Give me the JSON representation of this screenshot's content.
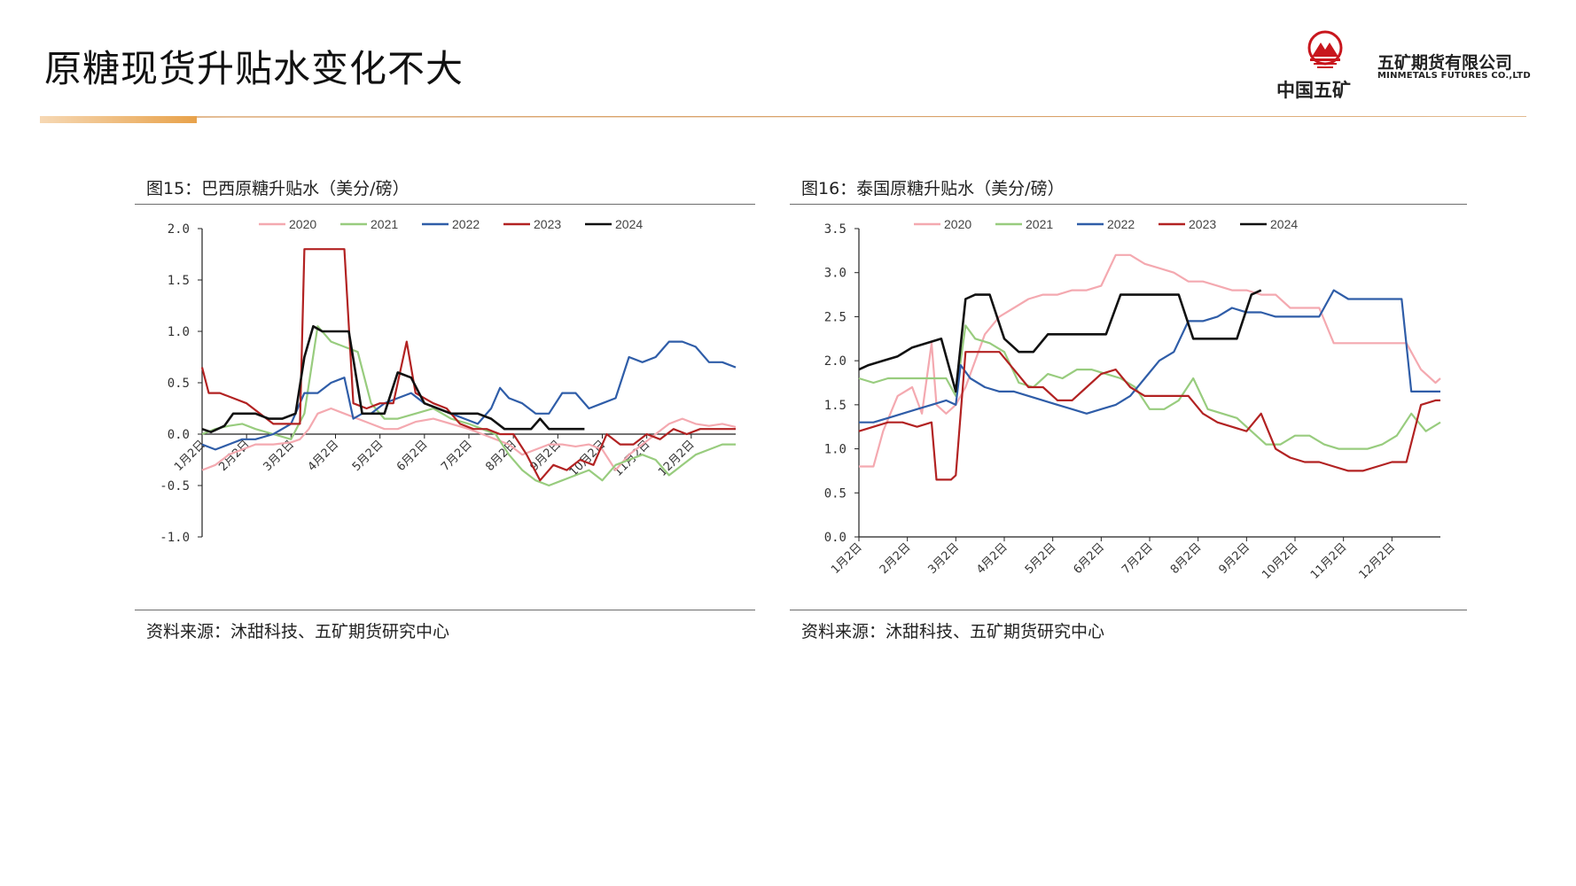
{
  "page": {
    "title": "原糖现货升贴水变化不大"
  },
  "logo": {
    "cn_name": "中国五矿",
    "company": "五矿期货有限公司",
    "company_en": "MINMETALS FUTURES CO.,LTD"
  },
  "colors": {
    "2020": "#f4a9b0",
    "2021": "#98cc7e",
    "2022": "#2f5da8",
    "2023": "#b22222",
    "2024": "#111111",
    "header_rule_accent": "#e8a24a",
    "header_rule_line": "#d9a26a"
  },
  "chart_data": [
    {
      "type": "line",
      "title": "图15：巴西原糖升贴水（美分/磅）",
      "source": "资料来源：沐甜科技、五矿期货研究中心",
      "ylim": [
        -1.0,
        2.0
      ],
      "yticks": [
        "2.0",
        "1.5",
        "1.0",
        "0.5",
        "0.0",
        "-0.5",
        "-1.0"
      ],
      "ytick_values": [
        2.0,
        1.5,
        1.0,
        0.5,
        0.0,
        -0.5,
        -1.0
      ],
      "x_domain": [
        0,
        12
      ],
      "xtick_positions": [
        0,
        1,
        2,
        3,
        4,
        5,
        6,
        7,
        8,
        9,
        10,
        11
      ],
      "xticks": [
        "1月2日",
        "2月2日",
        "3月2日",
        "4月2日",
        "5月2日",
        "6月2日",
        "7月2日",
        "8月2日",
        "9月2日",
        "10月2日",
        "11月2日",
        "12月2日"
      ],
      "xtick_rotation": -45,
      "legend_position": "top-center",
      "series": [
        {
          "name": "2020",
          "x": [
            0,
            0.3,
            0.6,
            0.9,
            1.2,
            1.6,
            2.0,
            2.2,
            2.4,
            2.6,
            2.9,
            3.2,
            3.5,
            3.8,
            4.1,
            4.4,
            4.8,
            5.2,
            5.6,
            6.0,
            6.3,
            6.6,
            6.9,
            7.2,
            7.5,
            7.8,
            8.1,
            8.4,
            8.7,
            9.0,
            9.3,
            9.6,
            9.9,
            10.2,
            10.5,
            10.8,
            11.1,
            11.4,
            11.7,
            12.0
          ],
          "values": [
            -0.35,
            -0.3,
            -0.2,
            -0.15,
            -0.1,
            -0.1,
            -0.08,
            -0.05,
            0.05,
            0.2,
            0.25,
            0.2,
            0.15,
            0.1,
            0.05,
            0.05,
            0.12,
            0.15,
            0.1,
            0.05,
            0.0,
            -0.05,
            -0.1,
            -0.2,
            -0.15,
            -0.1,
            -0.1,
            -0.12,
            -0.1,
            -0.15,
            -0.35,
            -0.2,
            -0.1,
            0.0,
            0.1,
            0.15,
            0.1,
            0.08,
            0.1,
            0.07
          ]
        },
        {
          "name": "2021",
          "x": [
            0,
            0.3,
            0.6,
            0.9,
            1.2,
            1.6,
            2.0,
            2.3,
            2.6,
            2.9,
            3.2,
            3.5,
            3.8,
            4.1,
            4.4,
            4.8,
            5.2,
            5.6,
            6.0,
            6.3,
            6.6,
            6.9,
            7.2,
            7.5,
            7.8,
            8.1,
            8.4,
            8.7,
            9.0,
            9.3,
            9.6,
            9.9,
            10.2,
            10.5,
            10.8,
            11.1,
            11.4,
            11.7,
            12.0
          ],
          "values": [
            0.0,
            0.05,
            0.08,
            0.1,
            0.05,
            0.0,
            -0.05,
            0.2,
            1.05,
            0.9,
            0.85,
            0.8,
            0.3,
            0.15,
            0.15,
            0.2,
            0.25,
            0.15,
            0.1,
            0.05,
            0.0,
            -0.2,
            -0.35,
            -0.45,
            -0.5,
            -0.45,
            -0.4,
            -0.35,
            -0.45,
            -0.3,
            -0.25,
            -0.2,
            -0.25,
            -0.4,
            -0.3,
            -0.2,
            -0.15,
            -0.1,
            -0.1
          ]
        },
        {
          "name": "2022",
          "x": [
            0,
            0.3,
            0.6,
            0.9,
            1.2,
            1.6,
            2.0,
            2.3,
            2.6,
            2.9,
            3.2,
            3.4,
            3.6,
            3.8,
            4.1,
            4.4,
            4.7,
            5.0,
            5.3,
            5.6,
            5.9,
            6.2,
            6.5,
            6.7,
            6.9,
            7.2,
            7.5,
            7.8,
            8.1,
            8.4,
            8.7,
            9.0,
            9.3,
            9.6,
            9.9,
            10.2,
            10.5,
            10.8,
            11.1,
            11.4,
            11.7,
            12.0
          ],
          "values": [
            -0.1,
            -0.15,
            -0.1,
            -0.05,
            -0.05,
            0.0,
            0.1,
            0.4,
            0.4,
            0.5,
            0.55,
            0.15,
            0.2,
            0.2,
            0.3,
            0.35,
            0.4,
            0.3,
            0.25,
            0.2,
            0.15,
            0.1,
            0.25,
            0.45,
            0.35,
            0.3,
            0.2,
            0.2,
            0.4,
            0.4,
            0.25,
            0.3,
            0.35,
            0.75,
            0.7,
            0.75,
            0.9,
            0.9,
            0.85,
            0.7,
            0.7,
            0.65
          ]
        },
        {
          "name": "2023",
          "x": [
            0,
            0.15,
            0.4,
            0.7,
            1.0,
            1.3,
            1.6,
            1.9,
            2.2,
            2.3,
            2.6,
            2.9,
            3.2,
            3.4,
            3.7,
            4.0,
            4.3,
            4.6,
            4.8,
            5.0,
            5.2,
            5.5,
            5.8,
            6.1,
            6.4,
            6.7,
            7.0,
            7.3,
            7.6,
            7.9,
            8.2,
            8.5,
            8.8,
            9.1,
            9.4,
            9.7,
            10.0,
            10.3,
            10.6,
            10.9,
            11.2,
            11.5,
            11.8,
            12.0
          ],
          "values": [
            0.65,
            0.4,
            0.4,
            0.35,
            0.3,
            0.2,
            0.1,
            0.1,
            0.1,
            1.8,
            1.8,
            1.8,
            1.8,
            0.3,
            0.25,
            0.3,
            0.3,
            0.9,
            0.4,
            0.35,
            0.3,
            0.25,
            0.1,
            0.05,
            0.05,
            0.0,
            0.0,
            -0.2,
            -0.45,
            -0.3,
            -0.35,
            -0.25,
            -0.3,
            0.0,
            -0.1,
            -0.1,
            0.0,
            -0.05,
            0.05,
            0.0,
            0.05,
            0.05,
            0.05,
            0.05
          ]
        },
        {
          "name": "2024",
          "x": [
            0,
            0.2,
            0.5,
            0.7,
            0.9,
            1.2,
            1.5,
            1.8,
            2.1,
            2.3,
            2.5,
            2.7,
            3.0,
            3.3,
            3.6,
            3.8,
            4.1,
            4.4,
            4.7,
            5.0,
            5.3,
            5.6,
            5.9,
            6.2,
            6.5,
            6.8,
            7.1,
            7.4,
            7.6,
            7.8,
            8.1,
            8.4,
            8.6
          ],
          "values": [
            0.05,
            0.02,
            0.08,
            0.2,
            0.2,
            0.2,
            0.15,
            0.15,
            0.2,
            0.75,
            1.05,
            1.0,
            1.0,
            1.0,
            0.2,
            0.2,
            0.2,
            0.6,
            0.55,
            0.3,
            0.25,
            0.2,
            0.2,
            0.2,
            0.15,
            0.05,
            0.05,
            0.05,
            0.15,
            0.05,
            0.05,
            0.05,
            0.05
          ]
        }
      ]
    },
    {
      "type": "line",
      "title": "图16：泰国原糖升贴水（美分/磅）",
      "source": "资料来源：沐甜科技、五矿期货研究中心",
      "ylim": [
        0.0,
        3.5
      ],
      "yticks": [
        "3.5",
        "3.0",
        "2.5",
        "2.0",
        "1.5",
        "1.0",
        "0.5",
        "0.0"
      ],
      "ytick_values": [
        3.5,
        3.0,
        2.5,
        2.0,
        1.5,
        1.0,
        0.5,
        0.0
      ],
      "x_domain": [
        0,
        12
      ],
      "xtick_positions": [
        0,
        1,
        2,
        3,
        4,
        5,
        6,
        7,
        8,
        9,
        10,
        11
      ],
      "xticks": [
        "1月2日",
        "2月2日",
        "3月2日",
        "4月2日",
        "5月2日",
        "6月2日",
        "7月2日",
        "8月2日",
        "9月2日",
        "10月2日",
        "11月2日",
        "12月2日"
      ],
      "xtick_rotation": -45,
      "legend_position": "top-center",
      "series": [
        {
          "name": "2020",
          "x": [
            0,
            0.3,
            0.5,
            0.8,
            1.1,
            1.3,
            1.5,
            1.6,
            1.8,
            2.0,
            2.2,
            2.4,
            2.6,
            2.9,
            3.2,
            3.5,
            3.8,
            4.1,
            4.4,
            4.7,
            5.0,
            5.3,
            5.6,
            5.9,
            6.2,
            6.5,
            6.8,
            7.1,
            7.4,
            7.7,
            8.0,
            8.3,
            8.6,
            8.9,
            9.2,
            9.5,
            9.8,
            10.1,
            10.4,
            10.7,
            11.0,
            11.3,
            11.6,
            11.9,
            12.0
          ],
          "values": [
            0.8,
            0.8,
            1.2,
            1.6,
            1.7,
            1.4,
            2.2,
            1.5,
            1.4,
            1.5,
            1.7,
            2.0,
            2.3,
            2.5,
            2.6,
            2.7,
            2.75,
            2.75,
            2.8,
            2.8,
            2.85,
            3.2,
            3.2,
            3.1,
            3.05,
            3.0,
            2.9,
            2.9,
            2.85,
            2.8,
            2.8,
            2.75,
            2.75,
            2.6,
            2.6,
            2.6,
            2.2,
            2.2,
            2.2,
            2.2,
            2.2,
            2.2,
            1.9,
            1.75,
            1.8
          ]
        },
        {
          "name": "2021",
          "x": [
            0,
            0.3,
            0.6,
            0.9,
            1.2,
            1.5,
            1.8,
            2.0,
            2.2,
            2.4,
            2.7,
            3.0,
            3.3,
            3.6,
            3.9,
            4.2,
            4.5,
            4.8,
            5.1,
            5.4,
            5.7,
            6.0,
            6.3,
            6.6,
            6.9,
            7.2,
            7.5,
            7.8,
            8.1,
            8.4,
            8.7,
            9.0,
            9.3,
            9.6,
            9.9,
            10.2,
            10.5,
            10.8,
            11.1,
            11.4,
            11.7,
            12.0
          ],
          "values": [
            1.8,
            1.75,
            1.8,
            1.8,
            1.8,
            1.8,
            1.8,
            1.6,
            2.4,
            2.25,
            2.2,
            2.1,
            1.75,
            1.7,
            1.85,
            1.8,
            1.9,
            1.9,
            1.85,
            1.8,
            1.7,
            1.45,
            1.45,
            1.55,
            1.8,
            1.45,
            1.4,
            1.35,
            1.2,
            1.05,
            1.05,
            1.15,
            1.15,
            1.05,
            1.0,
            1.0,
            1.0,
            1.05,
            1.15,
            1.4,
            1.2,
            1.3
          ]
        },
        {
          "name": "2022",
          "x": [
            0,
            0.3,
            0.6,
            0.9,
            1.2,
            1.5,
            1.8,
            2.0,
            2.1,
            2.3,
            2.6,
            2.9,
            3.2,
            3.5,
            3.8,
            4.1,
            4.4,
            4.7,
            5.0,
            5.3,
            5.6,
            5.9,
            6.2,
            6.5,
            6.8,
            7.1,
            7.4,
            7.7,
            8.0,
            8.3,
            8.6,
            8.9,
            9.2,
            9.5,
            9.8,
            10.1,
            10.4,
            10.7,
            11.0,
            11.2,
            11.4,
            11.6,
            11.8,
            12.0
          ],
          "values": [
            1.3,
            1.3,
            1.35,
            1.4,
            1.45,
            1.5,
            1.55,
            1.5,
            1.95,
            1.8,
            1.7,
            1.65,
            1.65,
            1.6,
            1.55,
            1.5,
            1.45,
            1.4,
            1.45,
            1.5,
            1.6,
            1.8,
            2.0,
            2.1,
            2.45,
            2.45,
            2.5,
            2.6,
            2.55,
            2.55,
            2.5,
            2.5,
            2.5,
            2.5,
            2.8,
            2.7,
            2.7,
            2.7,
            2.7,
            2.7,
            1.65,
            1.65,
            1.65,
            1.65
          ]
        },
        {
          "name": "2023",
          "x": [
            0,
            0.3,
            0.6,
            0.9,
            1.2,
            1.5,
            1.6,
            1.9,
            2.0,
            2.2,
            2.4,
            2.6,
            2.9,
            3.2,
            3.5,
            3.8,
            4.1,
            4.4,
            4.7,
            5.0,
            5.3,
            5.6,
            5.9,
            6.2,
            6.5,
            6.8,
            7.1,
            7.4,
            7.7,
            8.0,
            8.3,
            8.6,
            8.9,
            9.2,
            9.5,
            9.8,
            10.1,
            10.4,
            10.7,
            11.0,
            11.3,
            11.6,
            11.9,
            12.0
          ],
          "values": [
            1.2,
            1.25,
            1.3,
            1.3,
            1.25,
            1.3,
            0.65,
            0.65,
            0.7,
            2.1,
            2.1,
            2.1,
            2.1,
            1.9,
            1.7,
            1.7,
            1.55,
            1.55,
            1.7,
            1.85,
            1.9,
            1.7,
            1.6,
            1.6,
            1.6,
            1.6,
            1.4,
            1.3,
            1.25,
            1.2,
            1.4,
            1.0,
            0.9,
            0.85,
            0.85,
            0.8,
            0.75,
            0.75,
            0.8,
            0.85,
            0.85,
            1.5,
            1.55,
            1.55
          ]
        },
        {
          "name": "2024",
          "x": [
            0,
            0.2,
            0.5,
            0.8,
            1.1,
            1.4,
            1.7,
            2.0,
            2.2,
            2.4,
            2.7,
            3.0,
            3.3,
            3.6,
            3.9,
            4.2,
            4.5,
            4.8,
            5.1,
            5.4,
            5.7,
            6.0,
            6.3,
            6.6,
            6.9,
            7.2,
            7.5,
            7.8,
            8.1,
            8.3
          ],
          "values": [
            1.9,
            1.95,
            2.0,
            2.05,
            2.15,
            2.2,
            2.25,
            1.65,
            2.7,
            2.75,
            2.75,
            2.25,
            2.1,
            2.1,
            2.3,
            2.3,
            2.3,
            2.3,
            2.3,
            2.75,
            2.75,
            2.75,
            2.75,
            2.75,
            2.25,
            2.25,
            2.25,
            2.25,
            2.75,
            2.8
          ]
        }
      ]
    }
  ]
}
